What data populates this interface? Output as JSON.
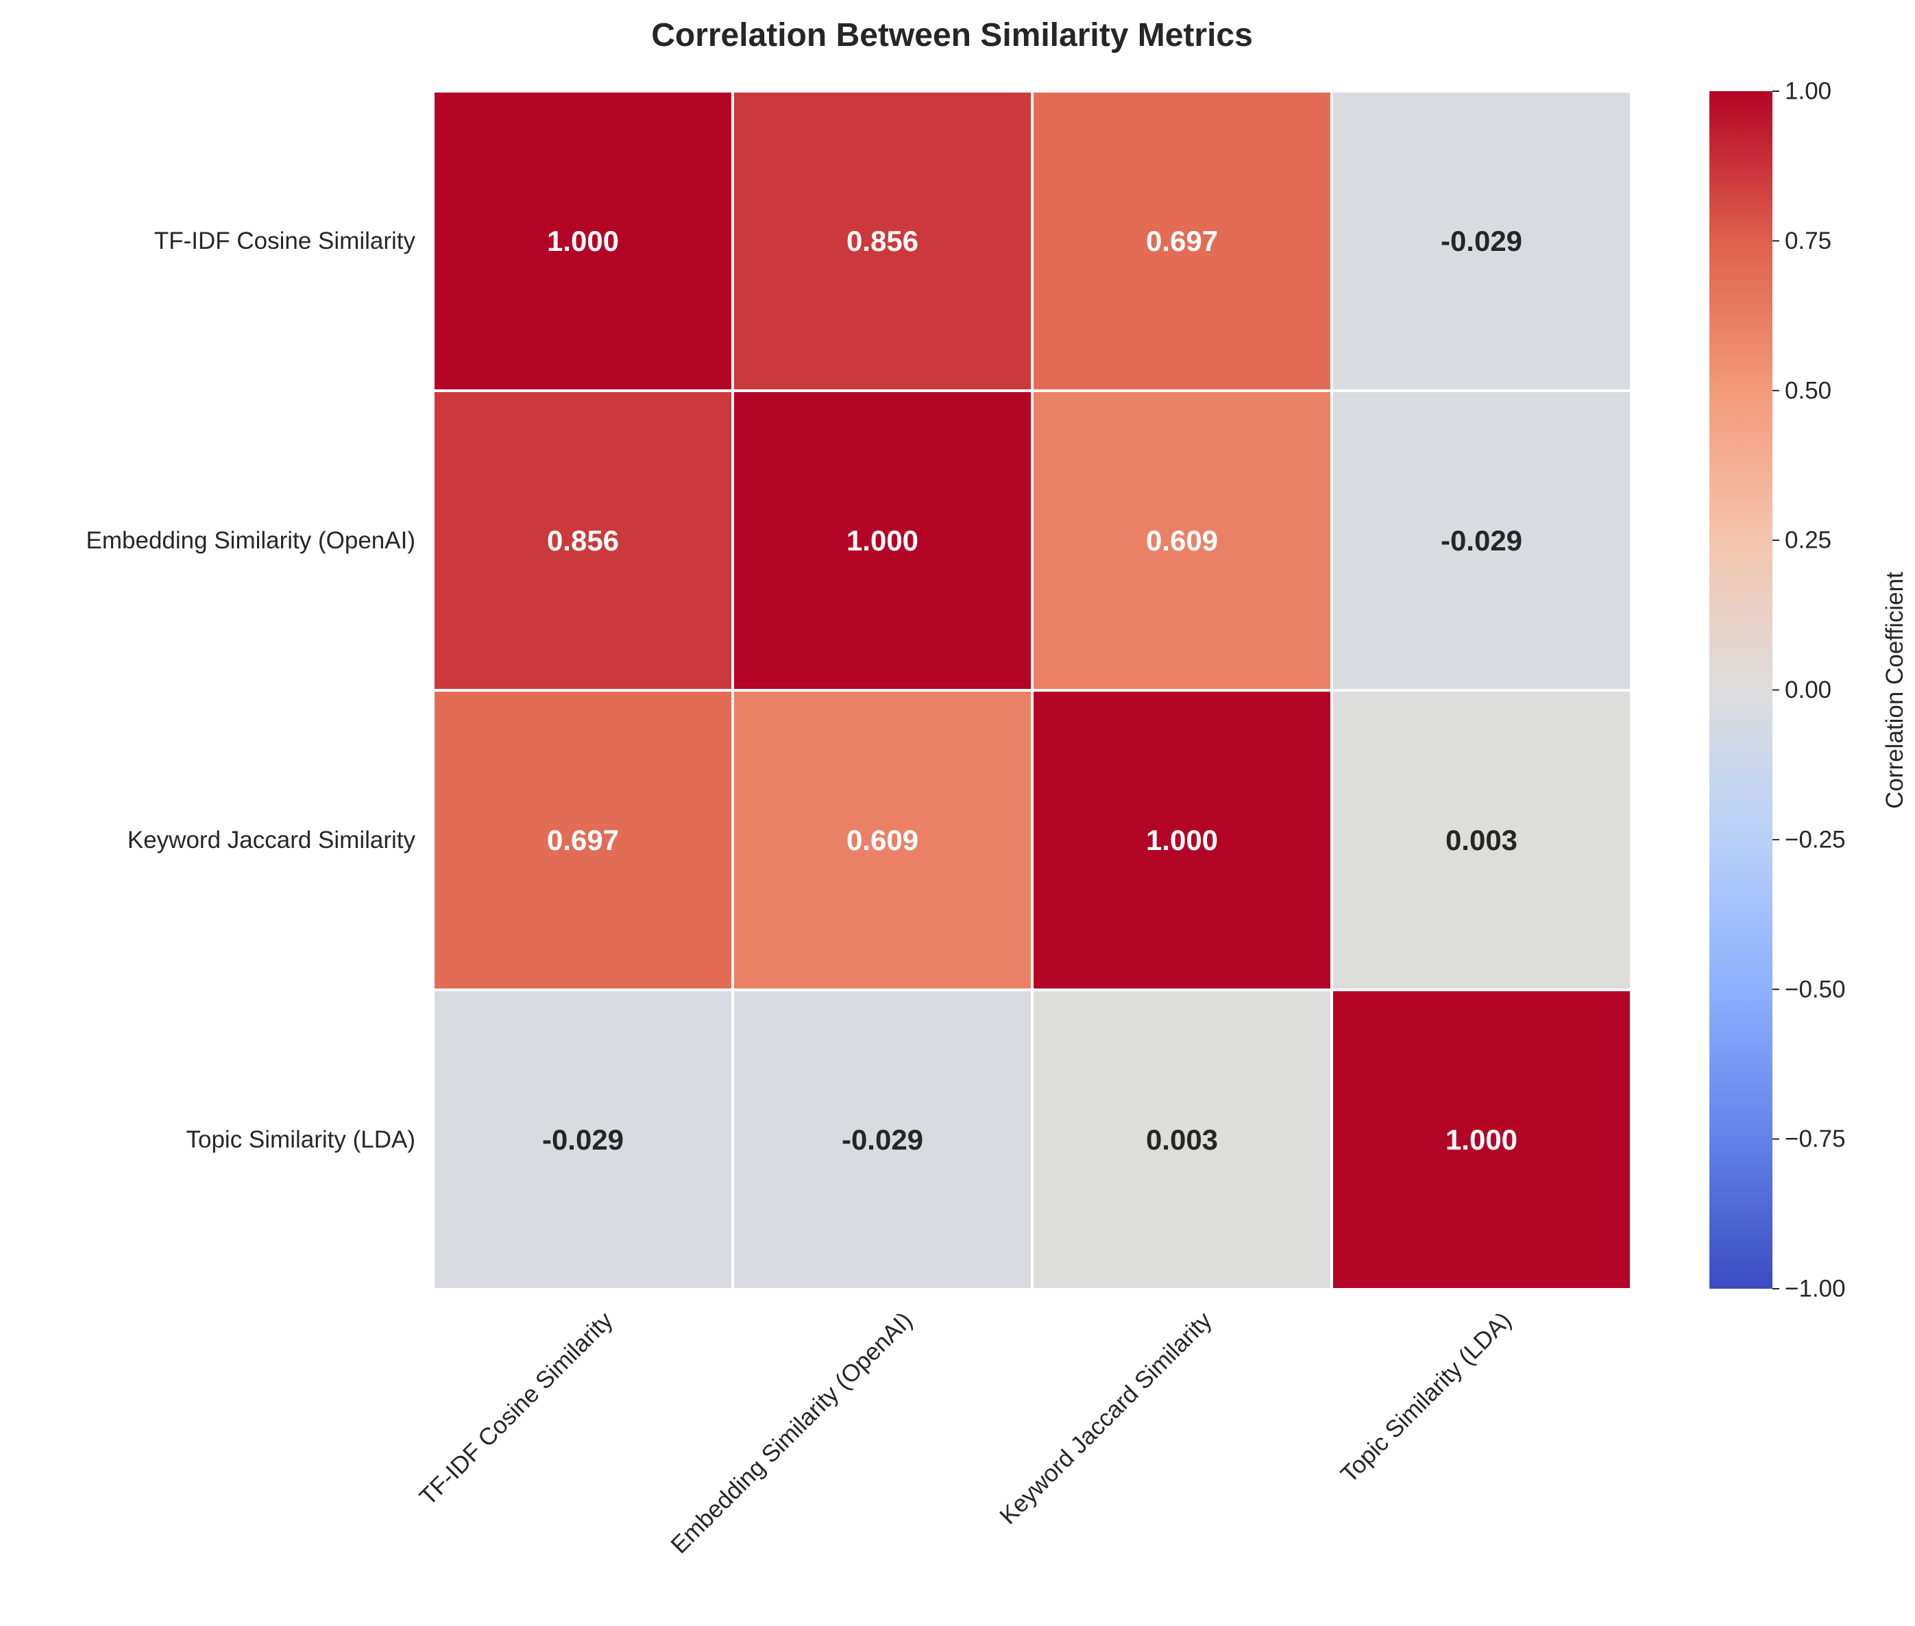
{
  "chart_data": {
    "type": "heatmap",
    "title": "Correlation Between Similarity Metrics",
    "rows": [
      "TF-IDF Cosine Similarity",
      "Embedding Similarity (OpenAI)",
      "Keyword Jaccard Similarity",
      "Topic Similarity (LDA)"
    ],
    "columns": [
      "TF-IDF Cosine Similarity",
      "Embedding Similarity (OpenAI)",
      "Keyword Jaccard Similarity",
      "Topic Similarity (LDA)"
    ],
    "values": [
      [
        1.0,
        0.856,
        0.697,
        -0.029
      ],
      [
        0.856,
        1.0,
        0.609,
        -0.029
      ],
      [
        0.697,
        0.609,
        1.0,
        0.003
      ],
      [
        -0.029,
        -0.029,
        0.003,
        1.0
      ]
    ],
    "value_labels": [
      [
        "1.000",
        "0.856",
        "0.697",
        "-0.029"
      ],
      [
        "0.856",
        "1.000",
        "0.609",
        "-0.029"
      ],
      [
        "0.697",
        "0.609",
        "1.000",
        "0.003"
      ],
      [
        "-0.029",
        "-0.029",
        "0.003",
        "1.000"
      ]
    ],
    "colormap": "coolwarm",
    "vmin": -1,
    "vmax": 1,
    "colorbar": {
      "label": "Correlation Coefficient",
      "ticks": [
        1.0,
        0.75,
        0.5,
        0.25,
        0.0,
        -0.25,
        -0.5,
        -0.75,
        -1.0
      ],
      "tick_labels": [
        "1.00",
        "0.75",
        "0.50",
        "0.25",
        "0.00",
        "−0.25",
        "−0.50",
        "−0.75",
        "−1.00"
      ],
      "placement": "right"
    },
    "x_tick_rotation": "45 degrees",
    "grid": false
  }
}
